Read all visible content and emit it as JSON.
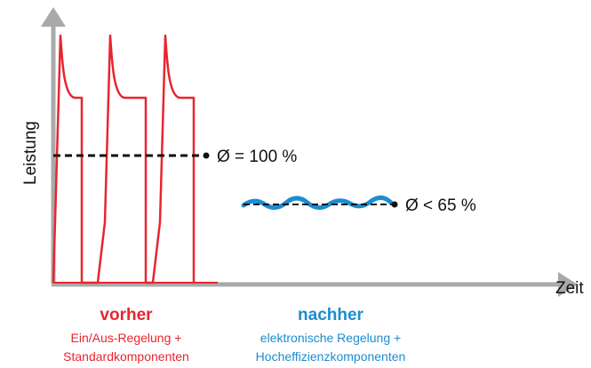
{
  "axis": {
    "y_label": "Leistung",
    "x_label": "Zeit"
  },
  "averages": {
    "before_label": "Ø = 100 %",
    "after_label": "Ø < 65 %"
  },
  "before": {
    "title": "vorher",
    "line1": "Ein/Aus-Regelung +",
    "line2": "Standardkomponenten",
    "color": "#e8252f"
  },
  "after": {
    "title": "nachher",
    "line1": "elektronische Regelung +",
    "line2": "Hocheffizienzkomponenten",
    "color": "#1d8ccf"
  },
  "colors": {
    "axis": "#a9a9a9",
    "average_line": "#111111"
  }
}
